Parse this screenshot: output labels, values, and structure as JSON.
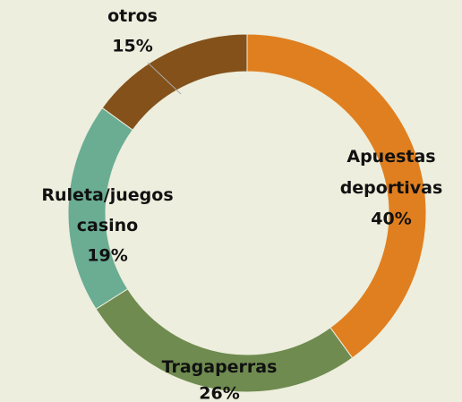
{
  "chart_data": {
    "type": "donut",
    "categories": [
      "Apuestas deportivas",
      "Tragaperras",
      "Ruleta/juegos casino",
      "otros"
    ],
    "values": [
      40,
      26,
      19,
      15
    ],
    "value_labels": [
      "40%",
      "26%",
      "19%",
      "15%"
    ],
    "colors": [
      "#e07f1f",
      "#6f8b50",
      "#6aad93",
      "#84511b"
    ]
  }
}
